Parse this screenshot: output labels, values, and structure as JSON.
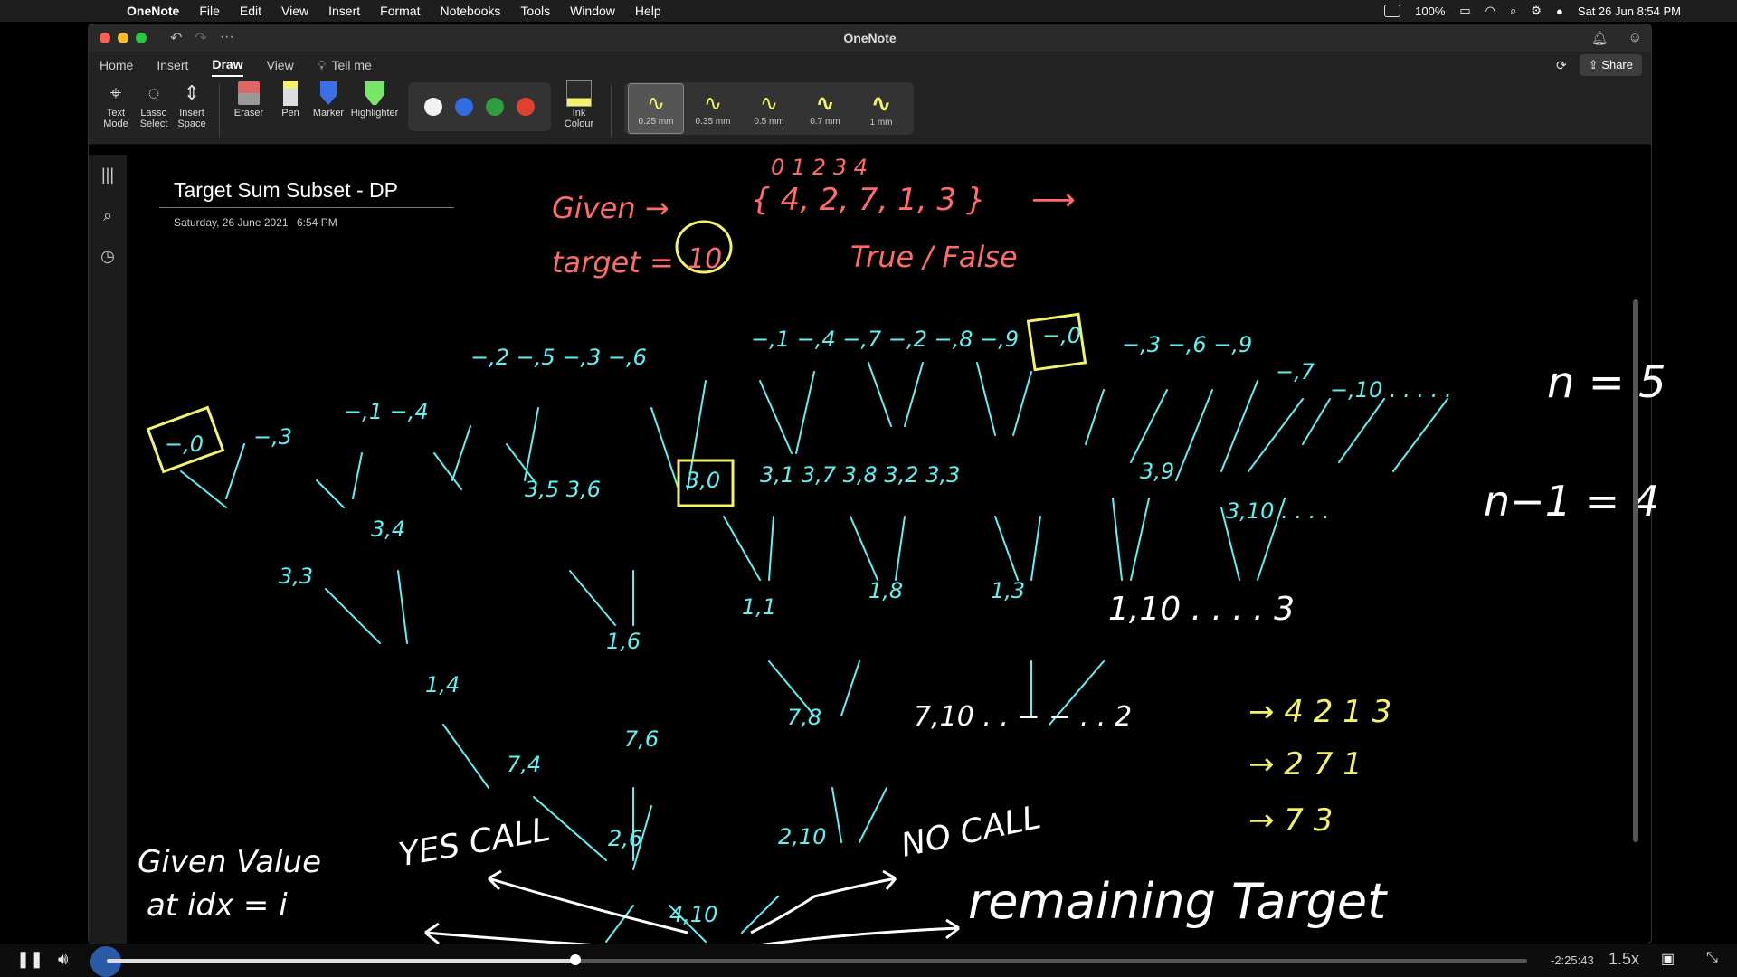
{
  "menubar": {
    "app_name": "OneNote",
    "menus": [
      "File",
      "Edit",
      "View",
      "Insert",
      "Format",
      "Notebooks",
      "Tools",
      "Window",
      "Help"
    ],
    "battery": "100%",
    "datetime": "Sat 26 Jun  8:54 PM"
  },
  "window": {
    "title": "OneNote",
    "tabs": [
      "Home",
      "Insert",
      "Draw",
      "View"
    ],
    "tell_me": "Tell me",
    "share_label": "Share"
  },
  "ribbon": {
    "tools": [
      "Text Mode",
      "Lasso Select",
      "Insert Space",
      "Eraser",
      "Pen",
      "Marker",
      "Highlighter"
    ],
    "ink_colour_label": "Ink Colour",
    "colors": [
      "#f2f2f2",
      "#2f6de0",
      "#2f9e3f",
      "#e0412f"
    ],
    "pen_sizes": [
      "0.25 mm",
      "0.35 mm",
      "0.5 mm",
      "0.7 mm",
      "1 mm"
    ]
  },
  "page": {
    "title": "Target Sum Subset - DP",
    "date": "Saturday, 26 June 2021",
    "time": "6:54 PM"
  },
  "ink": {
    "given": "Given →",
    "indices": "0   1   2   3   4",
    "array": "{ 4,  2,  7,  1,  3 }",
    "arrow": "⟶",
    "target": "target = ",
    "target_value": "10",
    "true_false": "True / False",
    "levels": [
      "−,1  −,4  −,7  −,2  −,8  −,9",
      "−,0",
      "−,3  −,6  −,9",
      "−,7",
      "−,10 . . . . .",
      "n = 5",
      "−,3",
      "−,1  −,4",
      "−,2  −,5  −,3  −,6",
      "−,0",
      "3,0",
      "3,1   3,7   3,8   3,2   3,3",
      "3,9",
      "3,10  . . . .",
      "n−1 = 4",
      "3,3",
      "3,4",
      "3,5   3,6",
      "1,6",
      "1,1",
      "1,8",
      "1,3",
      "1,10 . . . . 3",
      "1,4",
      "7,6",
      "7,8",
      "7,10 . . − − . . 2",
      "7,4",
      "2,6",
      "2,10",
      "4,10"
    ],
    "yes_call": "YES CALL",
    "no_call": "NO CALL",
    "given_value": "Given Value",
    "at_idx": "at idx = i",
    "remaining": "remaining Target",
    "sequences": [
      "→ 4  2  1  3",
      "→ 2  7  1",
      "→ 7  3"
    ]
  },
  "player": {
    "remaining_time": "-2:25:43",
    "speed": "1.5x",
    "progress": 0.33
  }
}
